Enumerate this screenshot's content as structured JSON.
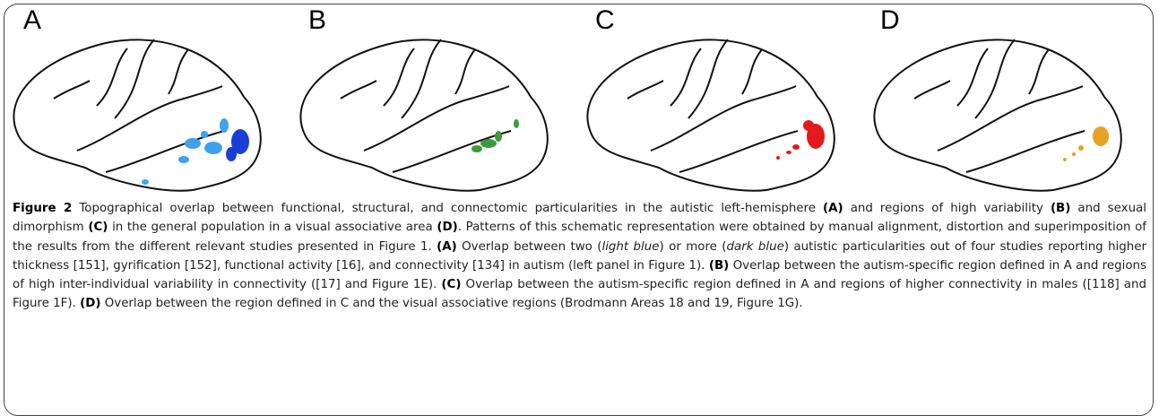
{
  "figure": {
    "panels": [
      {
        "label": "A"
      },
      {
        "label": "B"
      },
      {
        "label": "C"
      },
      {
        "label": "D"
      }
    ],
    "caption": [
      "Figure 2",
      " Topographical overlap between functional, structural, and connectomic particularities in the autistic left-hemisphere ",
      "(A)",
      " and regions of high variability ",
      "(B)",
      " and sexual dimorphism ",
      "(C)",
      " in the general population in a visual associative area ",
      "(D)",
      ". Patterns of this schematic representation were obtained by manual alignment, distortion and superimposition of the results from the different relevant studies presented in Figure 1. ",
      "(A)",
      " Overlap between two (",
      "light blue",
      ") or more (",
      "dark blue",
      ") autistic particularities out of four studies reporting higher thickness [151], gyrification [152], functional activity [16], and connectivity [134] in autism (left panel in Figure 1). ",
      "(B)",
      " Overlap between the autism-specific region defined in A and regions of high inter-individual variability in connectivity ([17] and Figure 1E). ",
      "(C)",
      " Overlap between the autism-specific region defined in A and regions of higher connectivity in males ([118] and Figure 1F). ",
      "(D)",
      " Overlap between the region defined in C and the visual associative regions (Brodmann Areas 18 and 19, Figure 1G)."
    ]
  }
}
